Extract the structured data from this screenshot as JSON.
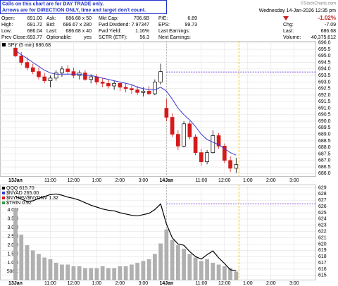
{
  "header": {
    "notice": [
      "Calls on this chart are for DAY TRADE only.",
      "Arrows are for DIRECTION ONLY, time and target don't count."
    ],
    "credit": "©StockCharts.com",
    "date": "Wednesday 14-Jan-2026 12:35 pm",
    "rows": [
      [
        [
          "Open:",
          "691.00"
        ],
        [
          "Ask:",
          "686.68 x 50"
        ],
        [
          "Mkt Cap:",
          "706.6B"
        ],
        [
          "P/E:",
          "6.89"
        ]
      ],
      [
        [
          "High:",
          "691.72"
        ],
        [
          "Bid:",
          "686.67 x 280"
        ],
        [
          "Fwd Dividend:",
          "7.97347"
        ],
        [
          "EPS:",
          "99.73"
        ]
      ],
      [
        [
          "Low:",
          "686.04"
        ],
        [
          "Last:",
          "686.68 x 40"
        ],
        [
          "Fwd Yield:",
          "1.16%"
        ],
        [
          "Last Earnings:"
        ]
      ],
      [
        [
          "Prev Close:",
          "693.77"
        ],
        [
          "Optionable:",
          "yes"
        ],
        [
          "SCTR (ETF):",
          "56.3"
        ],
        [
          "Next Earnings:"
        ]
      ]
    ],
    "change_pct": "-1.02%",
    "right_rows": [
      [
        "Chg:",
        "-7.09"
      ],
      [
        "Last:",
        "686.68"
      ],
      [
        "Volume:",
        "40,375,612"
      ]
    ]
  },
  "chart_data": [
    {
      "type": "candlestick",
      "legend": "SPY (5 min) 686.68",
      "up_color": "#000000",
      "down_color": "#d41a1a",
      "grid": true,
      "x": [
        0,
        15,
        30,
        45,
        60,
        75,
        90,
        105,
        120,
        135,
        150,
        165,
        180,
        195,
        210,
        225,
        240,
        255,
        270,
        285,
        300,
        315,
        330,
        345,
        360,
        375,
        390,
        405,
        420,
        435,
        450,
        465,
        480,
        495,
        510,
        525,
        540,
        555,
        570
      ],
      "open": [
        695.6,
        695.0,
        694.5,
        694.1,
        693.8,
        693.4,
        693.1,
        693.3,
        693.7,
        694.0,
        693.8,
        693.5,
        693.7,
        693.2,
        693.4,
        693.0,
        692.9,
        692.7,
        692.9,
        692.6,
        692.5,
        692.4,
        692.2,
        692.3,
        692.1,
        693.0,
        691.0,
        690.3,
        689.0,
        688.1,
        689.8,
        688.8,
        687.6,
        686.9,
        687.6,
        688.9,
        688.1,
        687.0,
        686.4
      ],
      "high": [
        695.9,
        695.3,
        694.9,
        694.4,
        694.1,
        693.7,
        693.5,
        693.9,
        694.2,
        694.3,
        694.1,
        693.9,
        693.9,
        693.6,
        693.6,
        693.3,
        693.2,
        693.1,
        693.0,
        692.9,
        692.8,
        692.7,
        692.6,
        692.7,
        693.2,
        694.4,
        691.72,
        690.6,
        689.3,
        690.0,
        690.0,
        689.0,
        687.9,
        687.8,
        689.3,
        689.1,
        688.3,
        687.3,
        687.2
      ],
      "low": [
        694.9,
        694.3,
        693.9,
        693.6,
        693.2,
        692.9,
        692.6,
        693.1,
        693.4,
        693.6,
        693.3,
        693.2,
        693.1,
        692.9,
        692.8,
        692.6,
        692.5,
        692.4,
        692.3,
        692.2,
        692.1,
        692.0,
        691.9,
        692.0,
        692.0,
        692.8,
        690.0,
        688.8,
        687.8,
        688.0,
        688.6,
        687.4,
        686.6,
        686.7,
        687.5,
        687.9,
        686.8,
        686.1,
        686.04
      ],
      "close": [
        695.0,
        694.5,
        694.1,
        693.8,
        693.4,
        693.1,
        693.3,
        693.7,
        694.0,
        693.8,
        693.5,
        693.7,
        693.2,
        693.4,
        693.0,
        692.9,
        692.7,
        692.9,
        692.6,
        692.5,
        692.4,
        692.2,
        692.3,
        692.1,
        693.0,
        693.8,
        690.3,
        689.0,
        688.1,
        689.8,
        688.8,
        687.6,
        686.9,
        687.6,
        688.9,
        688.1,
        687.0,
        686.4,
        686.68
      ],
      "ma": {
        "color": "#3b3bd0",
        "values": [
          695.4,
          695.1,
          694.8,
          694.5,
          694.2,
          693.9,
          693.7,
          693.6,
          693.6,
          693.6,
          693.6,
          693.6,
          693.5,
          693.5,
          693.4,
          693.3,
          693.2,
          693.1,
          693.0,
          692.9,
          692.8,
          692.6,
          692.5,
          692.4,
          692.4,
          692.6,
          692.3,
          691.7,
          691.0,
          690.5,
          690.1,
          689.6,
          689.0,
          688.6,
          688.4,
          688.2,
          687.9,
          687.6,
          687.4
        ]
      },
      "hline": {
        "value": 693.77,
        "color": "#6a2fd6"
      },
      "xlim": [
        -40,
        775
      ],
      "xticks": [
        {
          "value": 0,
          "label": "13Jan"
        },
        {
          "value": 90,
          "label": "11:00"
        },
        {
          "value": 150,
          "label": "12:00"
        },
        {
          "value": 210,
          "label": "1:00"
        },
        {
          "value": 270,
          "label": "2:00"
        },
        {
          "value": 330,
          "label": "3:00"
        },
        {
          "value": 390,
          "label": "14Jan"
        },
        {
          "value": 480,
          "label": "11:00"
        },
        {
          "value": 540,
          "label": "12:00"
        },
        {
          "value": 600,
          "label": "1:00"
        },
        {
          "value": 660,
          "label": "2:00"
        },
        {
          "value": 720,
          "label": "3:00"
        }
      ],
      "ylim": [
        685.8,
        696.15
      ],
      "yticks": [
        {
          "value": 686,
          "label": "686.0"
        },
        686.5,
        {
          "value": 687,
          "label": "687.0"
        },
        687.5,
        {
          "value": 688,
          "label": "688.0"
        },
        688.5,
        {
          "value": 689,
          "label": "689.0"
        },
        689.5,
        {
          "value": 690,
          "label": "690.0"
        },
        690.5,
        {
          "value": 691,
          "label": "691.0"
        },
        691.5,
        {
          "value": 692,
          "label": "692.0"
        },
        692.5,
        {
          "value": 693,
          "label": "693.0"
        },
        693.5,
        {
          "value": 694,
          "label": "694.0"
        },
        694.5,
        {
          "value": 695,
          "label": "695.0"
        },
        695.5,
        {
          "value": 696,
          "label": "696.0"
        }
      ]
    },
    {
      "type": "line",
      "legend": [
        "QQQ 615.70",
        "$NYAD 265.00",
        "$NYUPV/$NYDNV 1.32",
        "$TRIN 0.92"
      ],
      "legend_colors": [
        "#000000",
        "#3b3bd0",
        "#d41a1a",
        "#2e9e3e"
      ],
      "grid": true,
      "x": [
        0,
        15,
        30,
        45,
        60,
        75,
        90,
        105,
        120,
        135,
        150,
        165,
        180,
        195,
        210,
        225,
        240,
        255,
        270,
        285,
        300,
        315,
        330,
        345,
        360,
        375,
        390,
        405,
        420,
        435,
        450,
        465,
        480,
        495,
        510,
        525,
        540,
        555,
        570
      ],
      "series": [
        {
          "color": "#000000",
          "values": [
            627.6,
            627.2,
            626.8,
            626.9,
            627.3,
            627.6,
            627.9,
            628.0,
            627.8,
            627.5,
            627.3,
            627.0,
            626.6,
            626.2,
            625.9,
            625.6,
            625.4,
            625.3,
            625.0,
            624.8,
            624.6,
            624.5,
            624.7,
            624.9,
            625.5,
            626.4,
            623.2,
            621.0,
            620.0,
            619.8,
            618.8,
            618.0,
            617.6,
            618.3,
            618.9,
            617.8,
            616.9,
            615.9,
            615.7
          ]
        },
        {
          "color": "#b0b0b0",
          "axis": "y2",
          "values": [
            4100000,
            2600000,
            2000000,
            1700000,
            1500000,
            1300000,
            1200000,
            1000000,
            900000,
            900000,
            800000,
            800000,
            700000,
            700000,
            700000,
            800000,
            700000,
            700000,
            800000,
            800000,
            900000,
            1000000,
            1100000,
            1200000,
            1500000,
            2100000,
            2900000,
            2300000,
            2000000,
            1800000,
            1500000,
            1300000,
            1100000,
            1200000,
            1000000,
            900000,
            800000,
            700000,
            500000
          ]
        }
      ],
      "hline": {
        "value": 626.4,
        "color": "#6a2fd6"
      },
      "xlim": [
        -40,
        775
      ],
      "xticks": [
        {
          "value": 0,
          "label": "13Jan"
        },
        {
          "value": 90,
          "label": "11:00"
        },
        {
          "value": 150,
          "label": "12:00"
        },
        {
          "value": 210,
          "label": "1:00"
        },
        {
          "value": 270,
          "label": "2:00"
        },
        {
          "value": 330,
          "label": "3:00"
        },
        {
          "value": 390,
          "label": "14Jan"
        },
        {
          "value": 480,
          "label": "11:00"
        },
        {
          "value": 540,
          "label": "12:00"
        },
        {
          "value": 600,
          "label": "1:00"
        },
        {
          "value": 660,
          "label": "2:00"
        },
        {
          "value": 720,
          "label": "3:00"
        }
      ],
      "ylim": [
        614.2,
        629.5
      ],
      "yticks": [
        615,
        616,
        617,
        618,
        619,
        620,
        621,
        622,
        623,
        624,
        625,
        626,
        627,
        628,
        629
      ],
      "y2lim": [
        0,
        5450000
      ],
      "y2ticks": [
        {
          "value": 500000,
          "label": "500K"
        },
        {
          "value": 1000000,
          "label": "1.0M"
        },
        {
          "value": 1500000,
          "label": "1.5M"
        },
        {
          "value": 2000000,
          "label": "2.0M"
        },
        {
          "value": 2500000,
          "label": "2.5M"
        },
        {
          "value": 3000000,
          "label": "3.0M"
        },
        {
          "value": 3500000,
          "label": "3.5M"
        },
        {
          "value": 4000000,
          "label": "4.0M"
        }
      ]
    }
  ]
}
